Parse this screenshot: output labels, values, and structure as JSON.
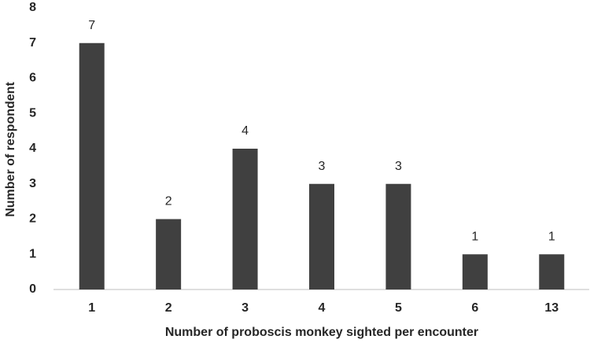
{
  "chart_data": {
    "type": "bar",
    "categories": [
      "1",
      "2",
      "3",
      "4",
      "5",
      "6",
      "13"
    ],
    "values": [
      7,
      2,
      4,
      3,
      3,
      1,
      1
    ],
    "color": "#404040",
    "xlabel": "Number of proboscis monkey sighted per encounter",
    "ylabel": "Number of respondent",
    "ylim": [
      0,
      8
    ],
    "yticks": [
      0,
      1,
      2,
      3,
      4,
      5,
      6,
      7,
      8
    ],
    "grid": false
  }
}
